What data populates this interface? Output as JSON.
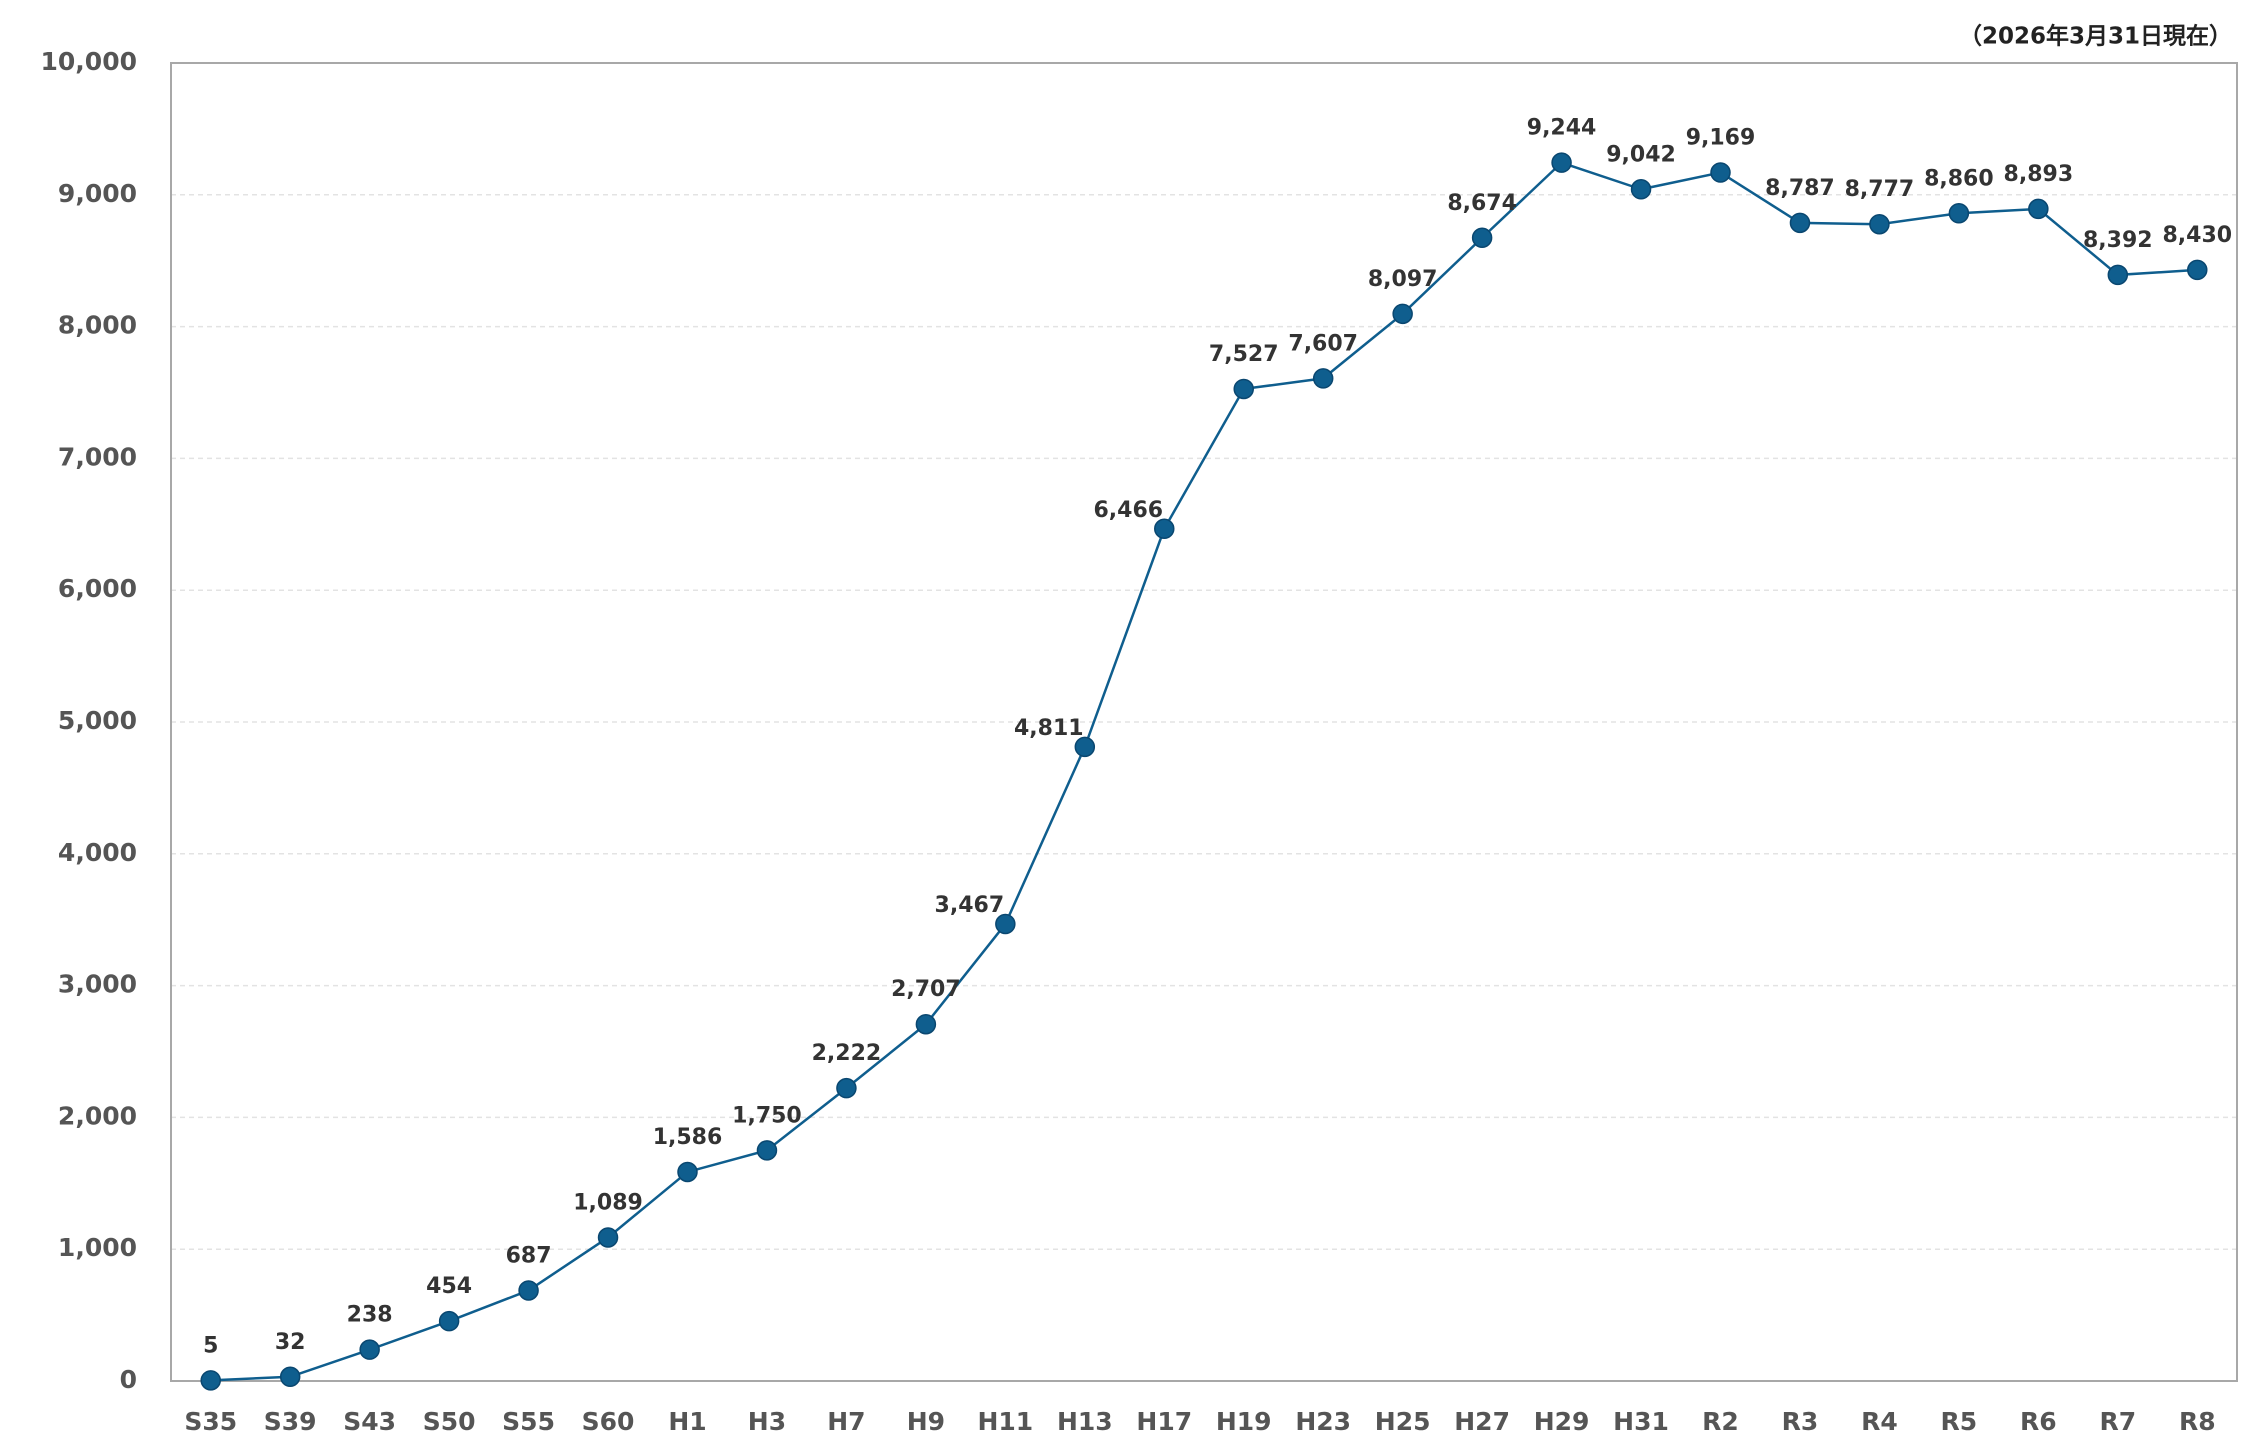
{
  "chart_data": {
    "type": "line",
    "annotation": "（2026年3月31日現在）",
    "categories": [
      "S35",
      "S39",
      "S43",
      "S50",
      "S55",
      "S60",
      "H1",
      "H3",
      "H7",
      "H9",
      "H11",
      "H13",
      "H17",
      "H19",
      "H23",
      "H25",
      "H27",
      "H29",
      "H31",
      "R2",
      "R3",
      "R4",
      "R5",
      "R6",
      "R7",
      "R8"
    ],
    "series": [
      {
        "color": "#0f5e8e",
        "values": [
          5,
          32,
          238,
          454,
          687,
          1089,
          1586,
          1750,
          2222,
          2707,
          3467,
          4811,
          6466,
          7527,
          7607,
          8097,
          8674,
          9244,
          9042,
          9169,
          8787,
          8777,
          8860,
          8893,
          8392,
          8430
        ],
        "value_labels": [
          "5",
          "32",
          "238",
          "454",
          "687",
          "1,089",
          "1,586",
          "1,750",
          "2,222",
          "2,707",
          "3,467",
          "4,811",
          "6,466",
          "7,527",
          "7,607",
          "8,097",
          "8,674",
          "9,244",
          "9,042",
          "9,169",
          "8,787",
          "8,777",
          "8,860",
          "8,893",
          "8,392",
          "8,430"
        ]
      }
    ],
    "ylim": [
      0,
      10000
    ],
    "yticks": [
      0,
      {
        "value": 1000,
        "label": "1,000"
      },
      {
        "value": 2000,
        "label": "2,000"
      },
      {
        "value": 3000,
        "label": "3,000"
      },
      {
        "value": 4000,
        "label": "4,000"
      },
      {
        "value": 5000,
        "label": "5,000"
      },
      {
        "value": 6000,
        "label": "6,000"
      },
      {
        "value": 7000,
        "label": "7,000"
      },
      {
        "value": 8000,
        "label": "8,000"
      },
      {
        "value": 9000,
        "label": "9,000"
      },
      {
        "value": 10000,
        "label": "10,000"
      }
    ],
    "grid": true
  }
}
